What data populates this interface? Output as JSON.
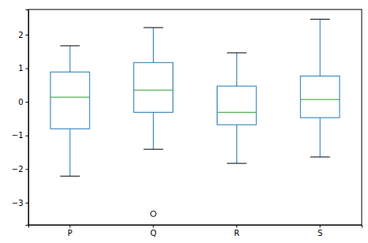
{
  "chart_data": {
    "type": "box",
    "categories": [
      "P",
      "Q",
      "R",
      "S"
    ],
    "boxes": [
      {
        "min": -2.21,
        "q1": -0.8,
        "median": 0.14,
        "q3": 0.89,
        "max": 1.67,
        "outliers": []
      },
      {
        "min": -1.41,
        "q1": -0.31,
        "median": 0.35,
        "q3": 1.17,
        "max": 2.21,
        "outliers": [
          -3.33
        ]
      },
      {
        "min": -1.83,
        "q1": -0.68,
        "median": -0.31,
        "q3": 0.47,
        "max": 1.46,
        "outliers": []
      },
      {
        "min": -1.64,
        "q1": -0.47,
        "median": 0.07,
        "q3": 0.77,
        "max": 2.46,
        "outliers": []
      }
    ],
    "color": "#1f77b4",
    "ylim": [
      -3.66,
      2.75
    ],
    "yticks": [
      {
        "value": -3,
        "label": "−3"
      },
      {
        "value": -2,
        "label": "−2"
      },
      {
        "value": -1,
        "label": "−1"
      },
      {
        "value": 0,
        "label": "0"
      },
      {
        "value": 1,
        "label": "1"
      },
      {
        "value": 2,
        "label": "2"
      }
    ]
  }
}
